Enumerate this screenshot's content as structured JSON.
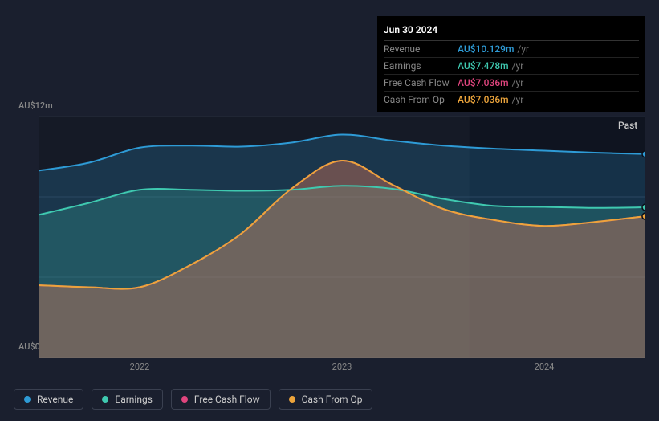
{
  "colors": {
    "revenue": "#2e9bd6",
    "earnings": "#3fc9b0",
    "fcf": "#e0457e",
    "cashop": "#eca43b",
    "bg": "#1a1f2e",
    "plot_bg": "#151a26",
    "grid": "#2a3142",
    "text": "#888888",
    "past_shade": "#0f1420"
  },
  "tooltip": {
    "date": "Jun 30 2024",
    "unit": "/yr",
    "rows": [
      {
        "label": "Revenue",
        "value": "AU$10.129m",
        "color_key": "revenue"
      },
      {
        "label": "Earnings",
        "value": "AU$7.478m",
        "color_key": "earnings"
      },
      {
        "label": "Free Cash Flow",
        "value": "AU$7.036m",
        "color_key": "fcf"
      },
      {
        "label": "Cash From Op",
        "value": "AU$7.036m",
        "color_key": "cashop"
      }
    ]
  },
  "chart": {
    "type": "area",
    "y_label_top": "AU$12m",
    "y_label_bottom": "AU$0",
    "past_label": "Past",
    "ylim": [
      0,
      12
    ],
    "grid_y": [
      0,
      4,
      8,
      12
    ],
    "xlim": [
      2021.5,
      2024.5
    ],
    "x_ticks": [
      2022,
      2023,
      2024
    ],
    "past_split": 2023.63,
    "series": [
      {
        "key": "revenue",
        "label": "Revenue",
        "points": [
          [
            2021.5,
            9.3
          ],
          [
            2021.75,
            9.7
          ],
          [
            2022.0,
            10.45
          ],
          [
            2022.25,
            10.55
          ],
          [
            2022.5,
            10.5
          ],
          [
            2022.75,
            10.7
          ],
          [
            2023.0,
            11.1
          ],
          [
            2023.25,
            10.8
          ],
          [
            2023.5,
            10.55
          ],
          [
            2023.75,
            10.4
          ],
          [
            2024.0,
            10.3
          ],
          [
            2024.25,
            10.2
          ],
          [
            2024.5,
            10.129
          ]
        ]
      },
      {
        "key": "earnings",
        "label": "Earnings",
        "points": [
          [
            2021.5,
            7.1
          ],
          [
            2021.75,
            7.7
          ],
          [
            2022.0,
            8.35
          ],
          [
            2022.25,
            8.35
          ],
          [
            2022.5,
            8.3
          ],
          [
            2022.75,
            8.35
          ],
          [
            2023.0,
            8.55
          ],
          [
            2023.25,
            8.4
          ],
          [
            2023.5,
            7.9
          ],
          [
            2023.75,
            7.55
          ],
          [
            2024.0,
            7.5
          ],
          [
            2024.25,
            7.45
          ],
          [
            2024.5,
            7.478
          ]
        ]
      },
      {
        "key": "fcf",
        "label": "Free Cash Flow",
        "points": [
          [
            2021.5,
            3.6
          ],
          [
            2021.75,
            3.5
          ],
          [
            2022.0,
            3.5
          ],
          [
            2022.25,
            4.6
          ],
          [
            2022.5,
            6.15
          ],
          [
            2022.75,
            8.4
          ],
          [
            2023.0,
            9.8
          ],
          [
            2023.25,
            8.6
          ],
          [
            2023.5,
            7.4
          ],
          [
            2023.75,
            6.85
          ],
          [
            2024.0,
            6.55
          ],
          [
            2024.25,
            6.75
          ],
          [
            2024.5,
            7.036
          ]
        ]
      },
      {
        "key": "cashop",
        "label": "Cash From Op",
        "points": [
          [
            2021.5,
            3.6
          ],
          [
            2021.75,
            3.5
          ],
          [
            2022.0,
            3.5
          ],
          [
            2022.25,
            4.6
          ],
          [
            2022.5,
            6.15
          ],
          [
            2022.75,
            8.4
          ],
          [
            2023.0,
            9.8
          ],
          [
            2023.25,
            8.6
          ],
          [
            2023.5,
            7.4
          ],
          [
            2023.75,
            6.85
          ],
          [
            2024.0,
            6.55
          ],
          [
            2024.25,
            6.75
          ],
          [
            2024.5,
            7.036
          ]
        ]
      }
    ]
  },
  "legend": [
    {
      "label": "Revenue",
      "color_key": "revenue"
    },
    {
      "label": "Earnings",
      "color_key": "earnings"
    },
    {
      "label": "Free Cash Flow",
      "color_key": "fcf"
    },
    {
      "label": "Cash From Op",
      "color_key": "cashop"
    }
  ]
}
